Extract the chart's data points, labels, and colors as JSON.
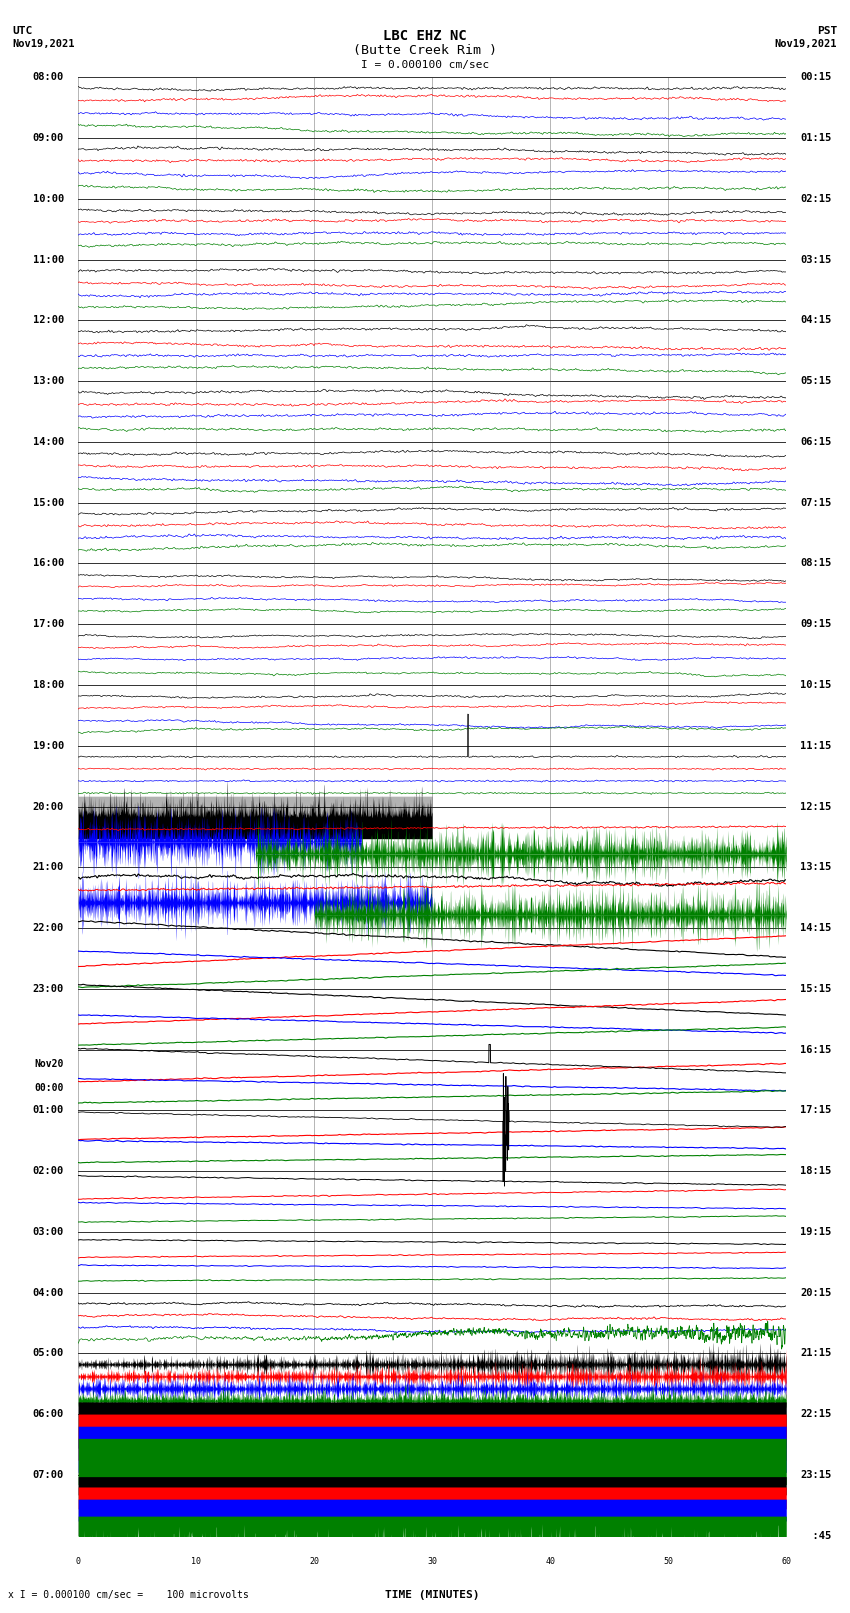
{
  "title_line1": "LBC EHZ NC",
  "title_line2": "(Butte Creek Rim )",
  "scale_label": "I = 0.000100 cm/sec",
  "footer_label": "x I = 0.000100 cm/sec =    100 microvolts",
  "xlabel": "TIME (MINUTES)",
  "utc_label": "UTC\nNov19,2021",
  "pst_label": "PST\nNov19,2021",
  "left_times": [
    "08:00",
    "09:00",
    "10:00",
    "11:00",
    "12:00",
    "13:00",
    "14:00",
    "15:00",
    "16:00",
    "17:00",
    "18:00",
    "19:00",
    "20:00",
    "21:00",
    "22:00",
    "23:00",
    "Nov20\n00:00",
    "01:00",
    "02:00",
    "03:00",
    "04:00",
    "05:00",
    "06:00",
    "07:00"
  ],
  "right_times": [
    "00:15",
    "01:15",
    "02:15",
    "03:15",
    "04:15",
    "05:15",
    "06:15",
    "07:15",
    "08:15",
    "09:15",
    "10:15",
    "11:15",
    "12:15",
    "13:15",
    "14:15",
    "15:15",
    "16:15",
    "17:15",
    "18:15",
    "19:15",
    "20:15",
    "21:15",
    "22:15",
    "23:15",
    "  :45"
  ],
  "bg_color": "#ffffff",
  "num_rows": 24,
  "colors": [
    "black",
    "red",
    "blue",
    "green"
  ]
}
